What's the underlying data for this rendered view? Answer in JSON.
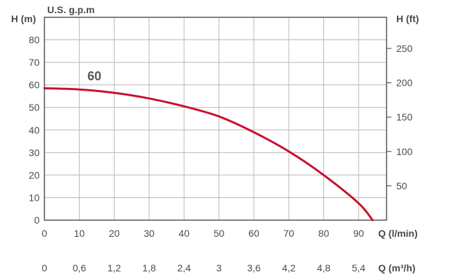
{
  "chart_data": {
    "type": "line",
    "top_axis_label": "U.S. g.p.m",
    "left_axis_label": "H (m)",
    "right_axis_label": "H (ft)",
    "x_axis_label": "Q (l/min)",
    "x2_axis_label": "Q (m³/h)",
    "xlim": [
      0,
      98
    ],
    "ylim": [
      0,
      90
    ],
    "x_ticks": [
      "0",
      "10",
      "20",
      "30",
      "40",
      "50",
      "60",
      "70",
      "80",
      "90"
    ],
    "x2_ticks": [
      "0",
      "0,6",
      "1,2",
      "1,8",
      "2,4",
      "3",
      "3,6",
      "4,2",
      "4,8",
      "5,4"
    ],
    "y_ticks": [
      "0",
      "10",
      "20",
      "30",
      "40",
      "50",
      "60",
      "70",
      "80"
    ],
    "y2_ticks": [
      "50",
      "100",
      "150",
      "200",
      "250"
    ],
    "grid": true,
    "series": [
      {
        "name": "60",
        "color": "#c8102e",
        "x": [
          0,
          10,
          20,
          30,
          40,
          50,
          60,
          70,
          80,
          90,
          94
        ],
        "y": [
          58.5,
          58,
          56.5,
          54,
          50.5,
          46,
          39,
          30.5,
          20,
          7.5,
          0
        ]
      }
    ]
  }
}
